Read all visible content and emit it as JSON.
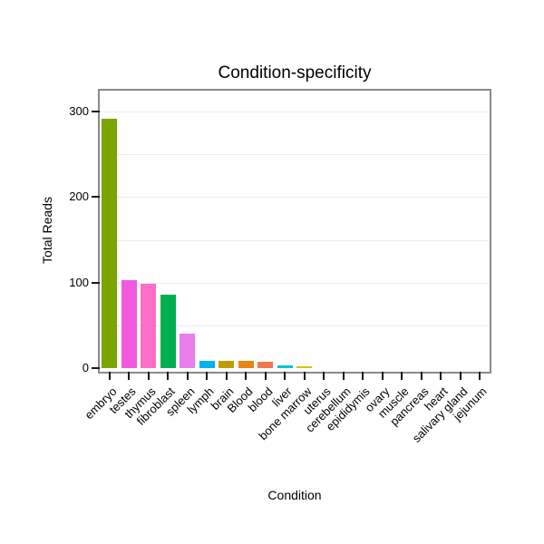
{
  "title": "Condition-specificity",
  "chart_data": {
    "type": "bar",
    "title": "Condition-specificity",
    "xlabel": "Condition",
    "ylabel": "Total Reads",
    "ylim": [
      0,
      310
    ],
    "yticks": [
      0,
      100,
      200,
      300
    ],
    "grid": true,
    "legend": "none",
    "categories": [
      "embryo",
      "testes",
      "thymus",
      "fibroblast",
      "spleen",
      "lymph",
      "brain",
      "Blood",
      "blood",
      "liver",
      "bone marrow",
      "uterus",
      "cerebellum",
      "epididymis",
      "ovary",
      "muscle",
      "pancreas",
      "heart",
      "salivary gland",
      "jejunum"
    ],
    "values": [
      292,
      103,
      99,
      86,
      40,
      9,
      8,
      8,
      7,
      3,
      2,
      0,
      0,
      0,
      0,
      0,
      0,
      0,
      0,
      0
    ],
    "colors": [
      "#7BA400",
      "#F25ADE",
      "#FF6EC7",
      "#00B04F",
      "#E97DEB",
      "#00B2EE",
      "#C09B00",
      "#E88612",
      "#F07850",
      "#00C5CD",
      "#D4C500",
      "#999999",
      "#999999",
      "#999999",
      "#999999",
      "#999999",
      "#999999",
      "#999999",
      "#999999",
      "#999999"
    ]
  }
}
